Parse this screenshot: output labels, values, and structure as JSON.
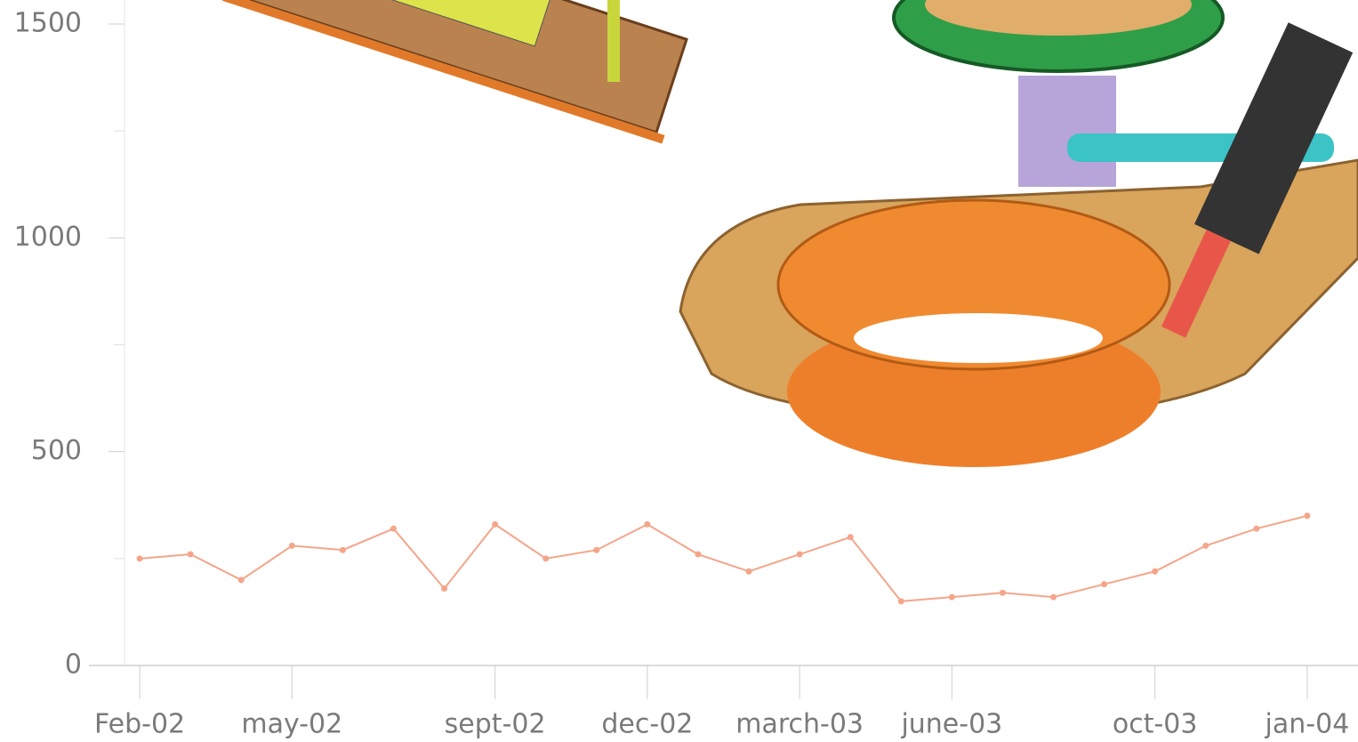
{
  "chart_data": {
    "type": "line",
    "x": [
      "2002-02",
      "2002-03",
      "2002-04",
      "2002-05",
      "2002-06",
      "2002-07",
      "2002-08",
      "2002-09",
      "2002-10",
      "2002-11",
      "2002-12",
      "2003-01",
      "2003-02",
      "2003-03",
      "2003-04",
      "2003-05",
      "2003-06",
      "2003-07",
      "2003-08",
      "2003-09",
      "2003-10",
      "2003-11",
      "2003-12",
      "2004-01"
    ],
    "values": [
      250,
      260,
      200,
      280,
      270,
      320,
      180,
      330,
      250,
      270,
      330,
      260,
      220,
      260,
      300,
      150,
      160,
      170,
      160,
      190,
      220,
      280,
      320,
      350
    ],
    "color": "#f4a58a",
    "xlim": [
      "2002-01",
      "2004-02"
    ],
    "xticks": [
      {
        "value": "2002-02",
        "label": "Feb-02"
      },
      {
        "value": "2002-05",
        "label": "may-02"
      },
      {
        "value": "2002-09",
        "label": "sept-02"
      },
      {
        "value": "2002-12",
        "label": "dec-02"
      },
      {
        "value": "2003-03",
        "label": "march-03"
      },
      {
        "value": "2003-06",
        "label": "june-03"
      },
      {
        "value": "2003-10",
        "label": "oct-03"
      },
      {
        "value": "2004-01",
        "label": "jan-04"
      }
    ],
    "ylim": [
      0,
      1500
    ],
    "yticks": [
      0,
      500,
      1000,
      1500
    ],
    "yminor": [
      250,
      750,
      1250
    ]
  }
}
